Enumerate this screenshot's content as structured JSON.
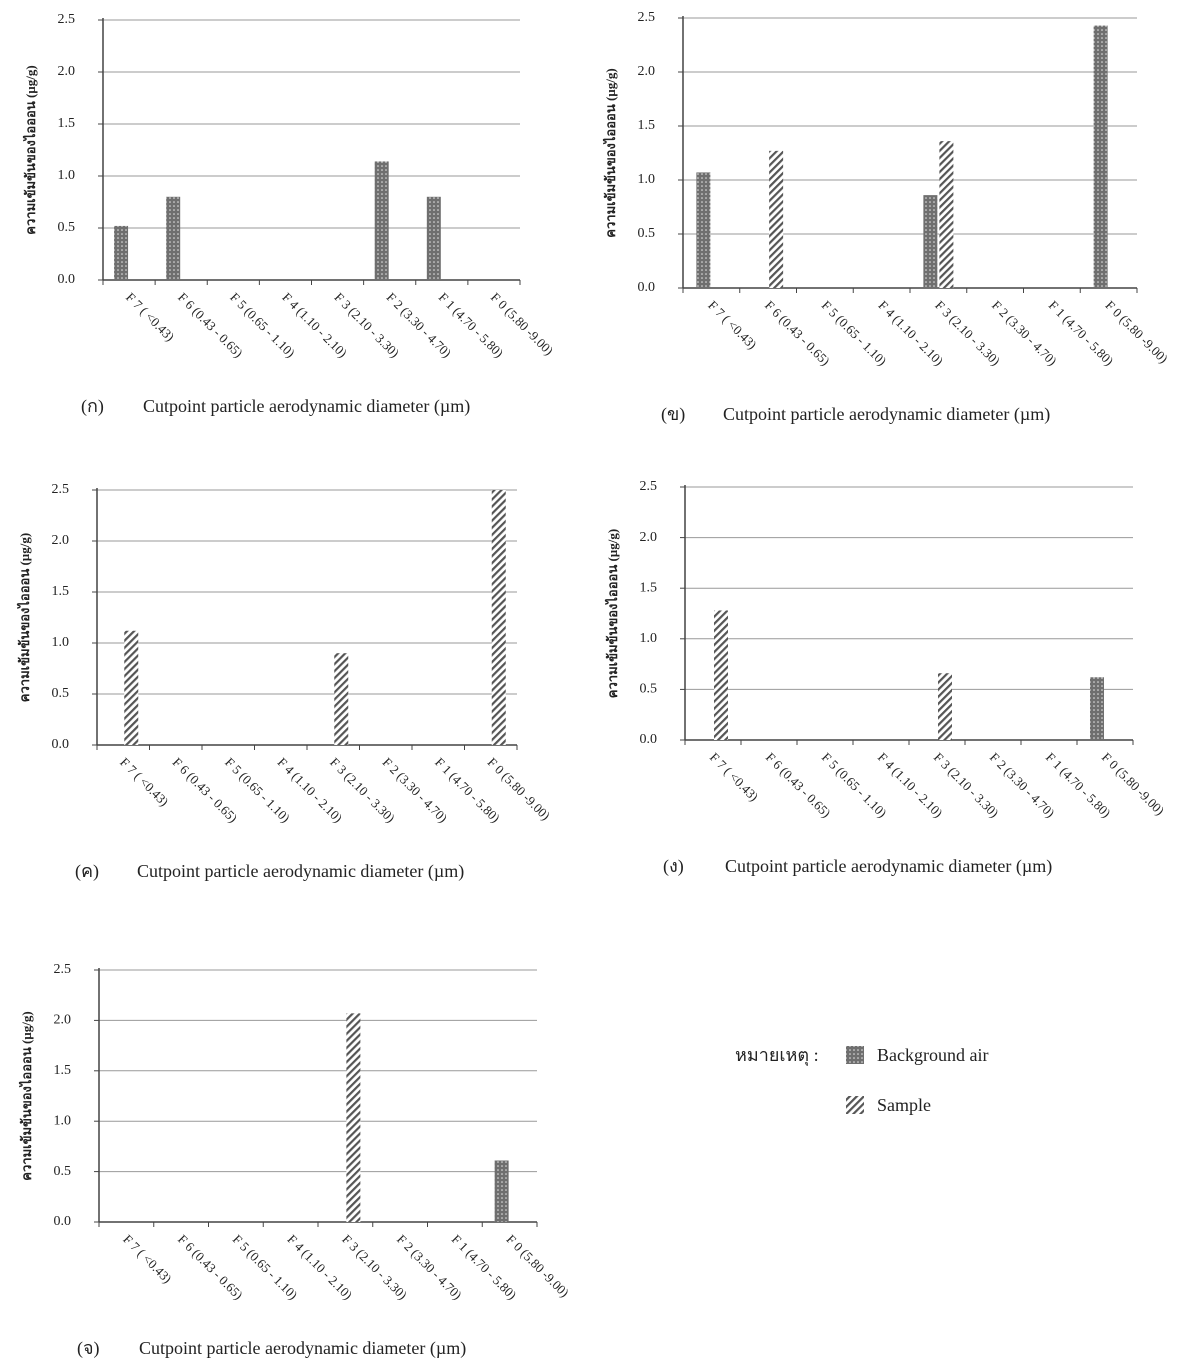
{
  "chart_data": [
    {
      "type": "bar",
      "panel": "(ก)",
      "ylabel": "ความเข้มข้นของไอออน (µg/g)",
      "xlabel": "Cutpoint particle aerodynamic diameter (µm)",
      "categories": [
        "F 7 ( <0.43)",
        "F 6 (0.43 - 0.65)",
        "F 5 (0.65 - 1.10)",
        "F 4 (1.10 - 2.10)",
        "F 3 (2.10 - 3.30)",
        "F 2 (3.30 - 4.70)",
        "F 1 (4.70 - 5.80)",
        "F 0 (5.80 -9.00)"
      ],
      "series": [
        {
          "name": "Background air",
          "color": "#6f6f6f",
          "pattern": "dots",
          "values": [
            0.52,
            0.8,
            null,
            null,
            null,
            1.14,
            0.8,
            null
          ]
        },
        {
          "name": "Sample",
          "color": "#555555",
          "pattern": "hatch",
          "values": [
            null,
            null,
            null,
            null,
            null,
            null,
            null,
            null
          ]
        }
      ],
      "ylim": [
        0,
        2.5
      ],
      "yticks": [
        {
          "value": 0,
          "label": "0.0"
        },
        0.5,
        {
          "value": 1,
          "label": "1.0"
        },
        1.5,
        {
          "value": 2,
          "label": "2.0"
        },
        2.5
      ],
      "grid": true
    },
    {
      "type": "bar",
      "panel": "(ข)",
      "ylabel": "ความเข้มข้นของไอออน (µg/g)",
      "xlabel": "Cutpoint particle aerodynamic diameter (µm)",
      "categories": [
        "F 7 ( <0.43)",
        "F 6 (0.43 - 0.65)",
        "F 5 (0.65 - 1.10)",
        "F 4 (1.10 - 2.10)",
        "F 3 (2.10 - 3.30)",
        "F 2 (3.30 - 4.70)",
        "F 1 (4.70 - 5.80)",
        "F 0 (5.80 -9.00)"
      ],
      "series": [
        {
          "name": "Background air",
          "color": "#6f6f6f",
          "pattern": "dots",
          "values": [
            1.07,
            null,
            null,
            null,
            0.86,
            null,
            null,
            2.43
          ]
        },
        {
          "name": "Sample",
          "color": "#555555",
          "pattern": "hatch",
          "values": [
            null,
            1.27,
            null,
            null,
            1.36,
            null,
            null,
            null
          ]
        }
      ],
      "ylim": [
        0,
        2.5
      ],
      "yticks": [
        {
          "value": 0,
          "label": "0.0"
        },
        0.5,
        {
          "value": 1,
          "label": "1.0"
        },
        1.5,
        {
          "value": 2,
          "label": "2.0"
        },
        2.5
      ],
      "grid": true
    },
    {
      "type": "bar",
      "panel": "(ค)",
      "ylabel": "ความเข้มข้นของไอออน (µg/g)",
      "xlabel": "Cutpoint particle aerodynamic diameter (µm)",
      "categories": [
        "F 7 ( <0.43)",
        "F 6 (0.43 - 0.65)",
        "F 5 (0.65 - 1.10)",
        "F 4 (1.10 - 2.10)",
        "F 3 (2.10 - 3.30)",
        "F 2 (3.30 - 4.70)",
        "F 1 (4.70 - 5.80)",
        "F 0 (5.80 -9.00)"
      ],
      "series": [
        {
          "name": "Background air",
          "color": "#6f6f6f",
          "pattern": "dots",
          "values": [
            null,
            null,
            null,
            null,
            null,
            null,
            null,
            null
          ]
        },
        {
          "name": "Sample",
          "color": "#555555",
          "pattern": "hatch",
          "values": [
            1.12,
            null,
            null,
            null,
            0.9,
            null,
            null,
            2.5
          ]
        }
      ],
      "ylim": [
        0,
        2.5
      ],
      "yticks": [
        {
          "value": 0,
          "label": "0.0"
        },
        0.5,
        {
          "value": 1,
          "label": "1.0"
        },
        1.5,
        {
          "value": 2,
          "label": "2.0"
        },
        2.5
      ],
      "grid": true
    },
    {
      "type": "bar",
      "panel": "(ง)",
      "ylabel": "ความเข้มข้นของไอออน (µg/g)",
      "xlabel": "Cutpoint particle aerodynamic diameter (µm)",
      "categories": [
        "F 7 ( <0.43)",
        "F 6 (0.43 - 0.65)",
        "F 5 (0.65 - 1.10)",
        "F 4 (1.10 - 2.10)",
        "F 3 (2.10 - 3.30)",
        "F 2 (3.30 - 4.70)",
        "F 1 (4.70 - 5.80)",
        "F 0 (5.80 -9.00)"
      ],
      "series": [
        {
          "name": "Background air",
          "color": "#6f6f6f",
          "pattern": "dots",
          "values": [
            null,
            null,
            null,
            null,
            null,
            null,
            null,
            0.62
          ]
        },
        {
          "name": "Sample",
          "color": "#555555",
          "pattern": "hatch",
          "values": [
            1.28,
            null,
            null,
            null,
            0.66,
            null,
            null,
            null
          ]
        }
      ],
      "ylim": [
        0,
        2.5
      ],
      "yticks": [
        {
          "value": 0,
          "label": "0.0"
        },
        0.5,
        {
          "value": 1,
          "label": "1.0"
        },
        1.5,
        {
          "value": 2,
          "label": "2.0"
        },
        2.5
      ],
      "grid": true
    },
    {
      "type": "bar",
      "panel": "(จ)",
      "ylabel": "ความเข้มข้นของไอออน (µg/g)",
      "xlabel": "Cutpoint particle aerodynamic diameter (µm)",
      "categories": [
        "F 7 ( <0.43)",
        "F 6 (0.43 - 0.65)",
        "F 5 (0.65 - 1.10)",
        "F 4 (1.10 - 2.10)",
        "F 3 (2.10 - 3.30)",
        "F 2 (3.30 - 4.70)",
        "F 1 (4.70 - 5.80)",
        "F 0 (5.80 -9.00)"
      ],
      "series": [
        {
          "name": "Background air",
          "color": "#6f6f6f",
          "pattern": "dots",
          "values": [
            null,
            null,
            null,
            null,
            null,
            null,
            null,
            0.61
          ]
        },
        {
          "name": "Sample",
          "color": "#555555",
          "pattern": "hatch",
          "values": [
            null,
            null,
            null,
            null,
            2.07,
            null,
            null,
            null
          ]
        }
      ],
      "ylim": [
        0,
        2.5
      ],
      "yticks": [
        {
          "value": 0,
          "label": "0.0"
        },
        0.5,
        {
          "value": 1,
          "label": "1.0"
        },
        1.5,
        {
          "value": 2,
          "label": "2.0"
        },
        2.5
      ],
      "grid": true
    }
  ],
  "legend": {
    "title": "หมายเหตุ :"
  }
}
